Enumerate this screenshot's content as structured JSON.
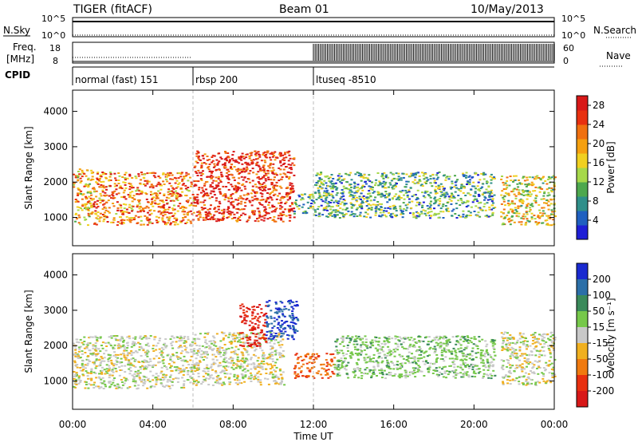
{
  "header": {
    "station": "TIGER (fitACF)",
    "beam": "Beam 01",
    "date": "10/May/2013"
  },
  "strip": {
    "nsky_label": "N.Sky",
    "nsearch_label": "N.Search",
    "freq_label": "Freq.",
    "freq_unit": "[MHz]",
    "nave_label": "Nave",
    "cpid_label": "CPID",
    "nsky_ticks": [
      "10^5",
      "10^0"
    ],
    "nsearch_ticks": [
      "10^5",
      "10^0"
    ],
    "freq_ticks": [
      "18",
      "8"
    ],
    "nave_ticks": [
      "60",
      "0"
    ],
    "cpid_segments": [
      {
        "label": "normal (fast) 151",
        "start_hour": 0,
        "end_hour": 6
      },
      {
        "label": "rbsp 200",
        "start_hour": 6,
        "end_hour": 12
      },
      {
        "label": "ltuseq -8510",
        "start_hour": 12,
        "end_hour": 24
      }
    ]
  },
  "chart_data": [
    {
      "type": "heatmap",
      "name": "power-panel",
      "ylabel": "Slant Range [km]",
      "xlabel": "Time UT",
      "xlim": [
        0,
        24
      ],
      "ylim": [
        200,
        4600
      ],
      "y_ticks": [
        "1000",
        "2000",
        "3000",
        "4000"
      ],
      "y_tick_values": [
        1000,
        2000,
        3000,
        4000
      ],
      "x_ticks": [
        "00:00",
        "04:00",
        "08:00",
        "12:00",
        "16:00",
        "20:00",
        "00:00"
      ],
      "x_tick_values": [
        0,
        4,
        8,
        12,
        16,
        20,
        24
      ],
      "colorbar": {
        "label": "Power [dB]",
        "ticks": [
          "4",
          "8",
          "12",
          "16",
          "20",
          "24",
          "28"
        ],
        "tick_values": [
          4,
          8,
          12,
          16,
          20,
          24,
          28
        ],
        "range": [
          0,
          30
        ],
        "colors": [
          "#1f1fd6",
          "#2060c0",
          "#2f8f8a",
          "#4ea84e",
          "#a6d84a",
          "#f0d020",
          "#f5a010",
          "#f07010",
          "#e83010",
          "#d81818"
        ]
      },
      "features": [
        {
          "start_hour": 0.0,
          "end_hour": 0.9,
          "range_low": 800,
          "range_high": 2400,
          "power_db": 18
        },
        {
          "start_hour": 0.9,
          "end_hour": 6.0,
          "range_low": 800,
          "range_high": 2300,
          "power_db": 22
        },
        {
          "start_hour": 6.0,
          "end_hour": 11.0,
          "range_low": 900,
          "range_high": 2900,
          "power_db": 27
        },
        {
          "start_hour": 11.0,
          "end_hour": 12.0,
          "range_low": 1100,
          "range_high": 1700,
          "power_db": 10
        },
        {
          "start_hour": 12.0,
          "end_hour": 21.0,
          "range_low": 1000,
          "range_high": 2300,
          "power_db": 10
        },
        {
          "start_hour": 21.3,
          "end_hour": 24.0,
          "range_low": 800,
          "range_high": 2200,
          "power_db": 16
        }
      ]
    },
    {
      "type": "heatmap",
      "name": "velocity-panel",
      "ylabel": "Slant Range [km]",
      "xlabel": "Time UT",
      "xlim": [
        0,
        24
      ],
      "ylim": [
        200,
        4600
      ],
      "y_ticks": [
        "1000",
        "2000",
        "3000",
        "4000"
      ],
      "y_tick_values": [
        1000,
        2000,
        3000,
        4000
      ],
      "x_ticks": [
        "00:00",
        "04:00",
        "08:00",
        "12:00",
        "16:00",
        "20:00",
        "00:00"
      ],
      "x_tick_values": [
        0,
        4,
        8,
        12,
        16,
        20,
        24
      ],
      "colorbar": {
        "label": "Velocity [m s⁻¹]",
        "ticks": [
          "200",
          "100",
          "50",
          "15",
          "-15",
          "-50",
          "-100",
          "-200"
        ],
        "tick_values": [
          200,
          100,
          50,
          15,
          -15,
          -50,
          -100,
          -200
        ],
        "colors": [
          "#1a2ad0",
          "#2b6fa8",
          "#3a8a5a",
          "#76c84a",
          "#c8c8c8",
          "#f0b020",
          "#f07a10",
          "#e83010",
          "#d81818"
        ]
      },
      "features": [
        {
          "start_hour": 0.0,
          "end_hour": 6.0,
          "range_low": 800,
          "range_high": 2300,
          "velocity": 0
        },
        {
          "start_hour": 6.0,
          "end_hour": 10.5,
          "range_low": 900,
          "range_high": 2400,
          "velocity": 0
        },
        {
          "start_hour": 8.3,
          "end_hour": 9.6,
          "range_low": 2000,
          "range_high": 3200,
          "velocity": -200
        },
        {
          "start_hour": 9.6,
          "end_hour": 11.2,
          "range_low": 2200,
          "range_high": 3300,
          "velocity": 200
        },
        {
          "start_hour": 11.0,
          "end_hour": 13.0,
          "range_low": 1100,
          "range_high": 1800,
          "velocity": -100
        },
        {
          "start_hour": 13.0,
          "end_hour": 21.0,
          "range_low": 1100,
          "range_high": 2300,
          "velocity": 30
        },
        {
          "start_hour": 21.3,
          "end_hour": 24.0,
          "range_low": 900,
          "range_high": 2400,
          "velocity": 0
        }
      ]
    }
  ]
}
